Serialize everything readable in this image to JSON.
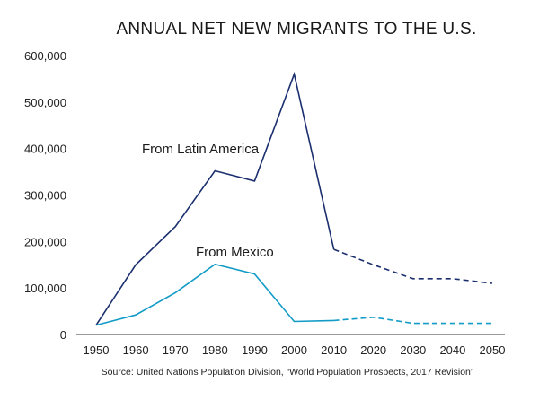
{
  "chart_data": {
    "type": "line",
    "title": "ANNUAL NET NEW MIGRANTS TO THE U.S.",
    "source": "Source: United Nations Population Division, “World Population Prospects, 2017 Revision”",
    "x": [
      1950,
      1960,
      1970,
      1980,
      1990,
      2000,
      2010,
      2020,
      2030,
      2040,
      2050
    ],
    "x_tick_labels": [
      "1950",
      "1960",
      "1970",
      "1980",
      "1990",
      "2000",
      "2010",
      "2020",
      "2030",
      "2040",
      "2050"
    ],
    "y_tick_values": [
      0,
      100000,
      200000,
      300000,
      400000,
      500000,
      600000
    ],
    "y_tick_labels": [
      "0",
      "100,000",
      "200,000",
      "300,000",
      "400,000",
      "500,000",
      "600,000"
    ],
    "xlim": [
      1950,
      2050
    ],
    "ylim": [
      0,
      600000
    ],
    "grid": false,
    "projection_start": 2010,
    "series": [
      {
        "name": "From Latin America",
        "color": "#1b2f6e",
        "values": [
          20000,
          150000,
          232000,
          352000,
          330000,
          560000,
          183000,
          150000,
          120000,
          120000,
          110000
        ]
      },
      {
        "name": "From Mexico",
        "color": "#129bc6",
        "values": [
          20000,
          42000,
          90000,
          151000,
          130000,
          28000,
          30000,
          37000,
          24000,
          24000,
          24000
        ]
      }
    ]
  }
}
